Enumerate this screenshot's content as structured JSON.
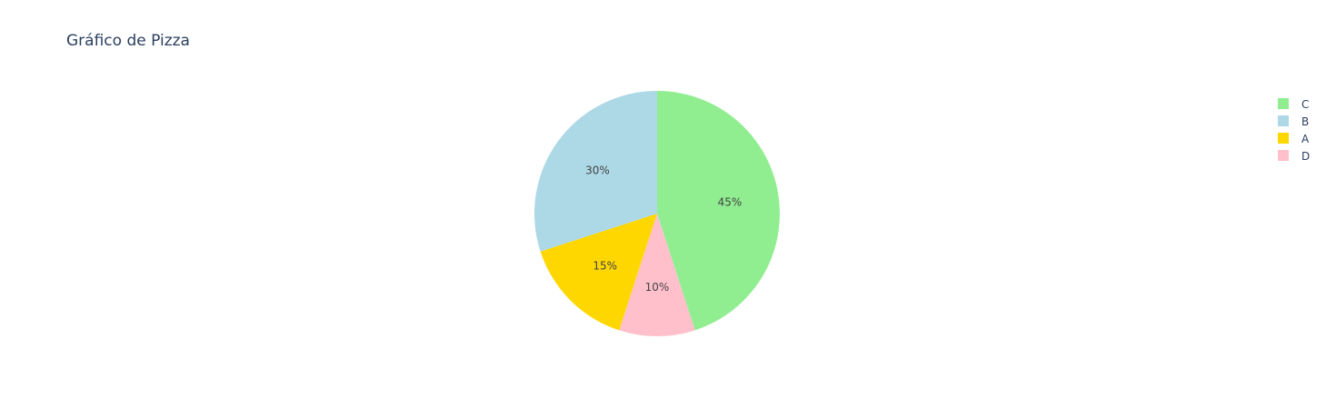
{
  "chart_data": {
    "type": "pie",
    "title": "Gráfico de Pizza",
    "start_angle_deg": 90,
    "direction": "clockwise",
    "slices": [
      {
        "label": "C",
        "value": 45,
        "text": "45%",
        "color": "#90EE90"
      },
      {
        "label": "D",
        "value": 10,
        "text": "10%",
        "color": "#FFC0CB"
      },
      {
        "label": "A",
        "value": 15,
        "text": "15%",
        "color": "#FFD700"
      },
      {
        "label": "B",
        "value": 30,
        "text": "30%",
        "color": "#ADD8E6"
      }
    ],
    "legend": {
      "placement": "top-right",
      "order": [
        "C",
        "B",
        "A",
        "D"
      ]
    }
  }
}
